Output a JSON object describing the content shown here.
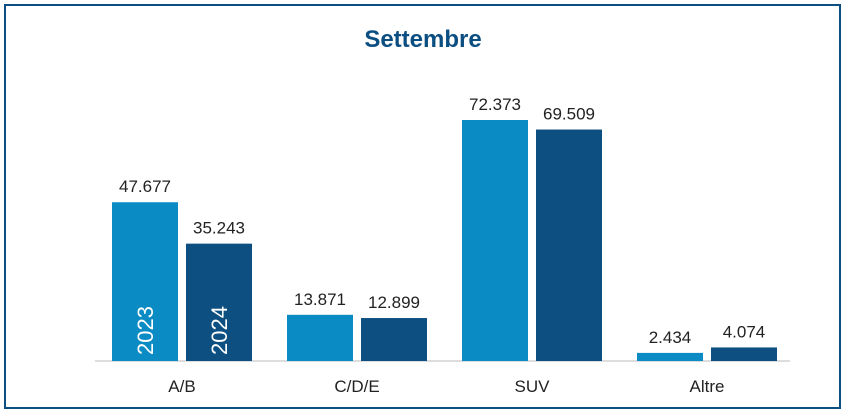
{
  "chart_data": {
    "type": "bar",
    "title": "Settembre",
    "categories": [
      "A/B",
      "C/D/E",
      "SUV",
      "Altre"
    ],
    "series": [
      {
        "name": "2023",
        "color": "#0b8bc4",
        "values": [
          47677,
          13871,
          72373,
          2434
        ],
        "value_labels": [
          "47.677",
          "13.871",
          "72.373",
          "2.434"
        ]
      },
      {
        "name": "2024",
        "color": "#0c4f80",
        "values": [
          35243,
          12899,
          69509,
          4074
        ],
        "value_labels": [
          "35.243",
          "12.899",
          "69.509",
          "4.074"
        ]
      }
    ]
  }
}
